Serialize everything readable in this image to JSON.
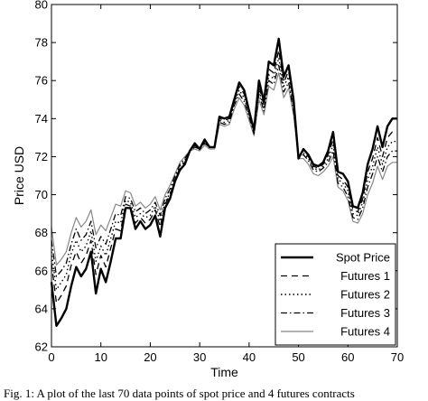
{
  "chart_data": {
    "type": "line",
    "title": "",
    "xlabel": "Time",
    "ylabel": "Price USD",
    "xlim": [
      0,
      70
    ],
    "ylim": [
      62,
      80
    ],
    "xticks": [
      0,
      10,
      20,
      30,
      40,
      50,
      60,
      70
    ],
    "yticks": [
      62,
      64,
      66,
      68,
      70,
      72,
      74,
      76,
      78,
      80
    ],
    "grid": false,
    "legend_position": "bottom-right",
    "x": [
      0,
      1,
      2,
      3,
      4,
      5,
      6,
      7,
      8,
      9,
      10,
      11,
      12,
      13,
      14,
      15,
      16,
      17,
      18,
      19,
      20,
      21,
      22,
      23,
      24,
      25,
      26,
      27,
      28,
      29,
      30,
      31,
      32,
      33,
      34,
      35,
      36,
      37,
      38,
      39,
      40,
      41,
      42,
      43,
      44,
      45,
      46,
      47,
      48,
      49,
      50,
      51,
      52,
      53,
      54,
      55,
      56,
      57,
      58,
      59,
      60,
      61,
      62,
      63,
      64,
      65,
      66,
      67,
      68,
      69,
      70
    ],
    "series": [
      {
        "name": "Spot Price",
        "style": "solid-thick",
        "color": "#000000",
        "values": [
          65.4,
          63.1,
          63.5,
          64.0,
          65.2,
          66.2,
          65.7,
          66.1,
          67.0,
          64.8,
          66.1,
          65.4,
          66.5,
          67.7,
          67.7,
          69.3,
          69.3,
          68.2,
          68.6,
          68.2,
          68.4,
          68.9,
          67.8,
          69.3,
          69.8,
          70.7,
          71.3,
          71.6,
          72.3,
          72.7,
          72.4,
          72.9,
          72.5,
          72.5,
          74.1,
          74.0,
          74.1,
          75.0,
          75.9,
          75.5,
          74.4,
          73.4,
          76.0,
          74.9,
          77.0,
          76.8,
          78.2,
          76.2,
          76.8,
          75.0,
          71.9,
          72.4,
          72.1,
          71.6,
          71.5,
          71.7,
          72.3,
          73.3,
          71.2,
          71.1,
          70.7,
          69.4,
          69.3,
          70.1,
          71.6,
          72.4,
          73.6,
          72.5,
          73.6,
          74.0,
          74.0
        ]
      },
      {
        "name": "Futures 1",
        "style": "dashed",
        "color": "#000000",
        "values": [
          66.4,
          64.3,
          64.7,
          65.2,
          66.3,
          67.0,
          66.4,
          66.8,
          67.6,
          65.8,
          66.8,
          66.2,
          67.2,
          68.2,
          68.1,
          69.5,
          69.4,
          68.5,
          68.8,
          68.5,
          68.7,
          69.2,
          68.3,
          69.5,
          70.0,
          70.8,
          71.4,
          71.7,
          72.3,
          72.6,
          72.4,
          72.8,
          72.5,
          72.5,
          74.0,
          73.9,
          74.0,
          74.9,
          75.7,
          75.3,
          74.3,
          73.4,
          75.7,
          74.7,
          76.6,
          76.4,
          77.6,
          75.9,
          76.5,
          74.8,
          72.0,
          72.3,
          72.0,
          71.5,
          71.4,
          71.6,
          72.1,
          72.9,
          71.0,
          70.8,
          70.4,
          69.2,
          69.1,
          69.8,
          71.2,
          71.9,
          73.0,
          72.0,
          73.0,
          73.3,
          73.3
        ]
      },
      {
        "name": "Futures 2",
        "style": "dotted",
        "color": "#000000",
        "values": [
          67.0,
          65.0,
          65.4,
          65.8,
          66.9,
          67.6,
          67.0,
          67.3,
          68.1,
          66.5,
          67.3,
          66.8,
          67.7,
          68.6,
          68.5,
          69.7,
          69.6,
          68.8,
          69.0,
          68.8,
          68.9,
          69.4,
          68.6,
          69.6,
          70.1,
          70.9,
          71.5,
          71.8,
          72.3,
          72.6,
          72.4,
          72.8,
          72.5,
          72.5,
          73.9,
          73.8,
          73.9,
          74.8,
          75.5,
          75.1,
          74.2,
          73.3,
          75.5,
          74.5,
          76.3,
          76.1,
          77.2,
          75.7,
          76.2,
          74.6,
          72.0,
          72.2,
          71.9,
          71.4,
          71.3,
          71.5,
          71.9,
          72.6,
          70.8,
          70.6,
          70.2,
          69.0,
          68.9,
          69.6,
          70.8,
          71.5,
          72.5,
          71.6,
          72.5,
          72.8,
          72.8
        ]
      },
      {
        "name": "Futures 3",
        "style": "dashdot",
        "color": "#000000",
        "values": [
          67.6,
          65.7,
          66.0,
          66.4,
          67.4,
          68.2,
          67.6,
          67.9,
          68.6,
          67.2,
          67.8,
          67.4,
          68.2,
          69.0,
          68.9,
          69.9,
          69.8,
          69.1,
          69.3,
          69.0,
          69.2,
          69.6,
          68.9,
          69.8,
          70.3,
          71.0,
          71.6,
          71.9,
          72.3,
          72.5,
          72.4,
          72.7,
          72.5,
          72.5,
          73.8,
          73.7,
          73.8,
          74.7,
          75.3,
          74.9,
          74.1,
          73.2,
          75.3,
          74.4,
          76.0,
          75.8,
          76.8,
          75.4,
          75.9,
          74.4,
          72.0,
          72.1,
          71.8,
          71.3,
          71.2,
          71.4,
          71.7,
          72.3,
          70.6,
          70.4,
          69.9,
          68.8,
          68.7,
          69.3,
          70.4,
          71.1,
          72.0,
          71.2,
          72.0,
          72.3,
          72.3
        ]
      },
      {
        "name": "Futures 4",
        "style": "solid-thin",
        "color": "#888888",
        "values": [
          68.3,
          66.3,
          66.6,
          67.0,
          68.0,
          68.8,
          68.3,
          68.6,
          69.2,
          67.9,
          68.4,
          68.1,
          68.8,
          69.5,
          69.4,
          70.2,
          70.1,
          69.4,
          69.6,
          69.3,
          69.5,
          69.9,
          69.2,
          70.0,
          70.5,
          71.1,
          71.7,
          72.0,
          72.3,
          72.4,
          72.3,
          72.6,
          72.4,
          72.4,
          73.7,
          73.6,
          73.7,
          74.5,
          75.1,
          74.7,
          73.9,
          73.1,
          75.0,
          74.2,
          75.7,
          75.5,
          76.4,
          75.1,
          75.6,
          74.2,
          71.9,
          71.9,
          71.6,
          71.1,
          71.0,
          71.2,
          71.5,
          72.0,
          70.4,
          70.2,
          69.7,
          68.6,
          68.5,
          69.0,
          70.0,
          70.6,
          71.5,
          70.8,
          71.5,
          71.7,
          71.7
        ]
      }
    ]
  },
  "caption": "Fig. 1: A plot of the last 70 data points of spot price and 4 futures contracts"
}
